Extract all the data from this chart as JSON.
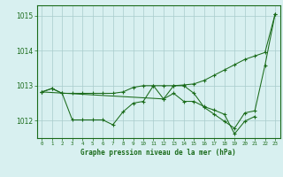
{
  "xlabel": "Graphe pression niveau de la mer (hPa)",
  "hours": [
    0,
    1,
    2,
    3,
    4,
    5,
    6,
    7,
    8,
    9,
    10,
    11,
    12,
    13,
    14,
    15,
    16,
    17,
    18,
    19,
    20,
    21,
    22,
    23
  ],
  "line1": [
    1012.82,
    1012.92,
    1012.78,
    1012.78,
    1012.78,
    1012.78,
    1012.78,
    1012.78,
    1012.82,
    1012.95,
    1013.0,
    1013.0,
    1013.0,
    1013.0,
    1013.02,
    1013.05,
    1013.15,
    1013.3,
    1013.45,
    1013.6,
    1013.75,
    1013.85,
    1013.95,
    1015.05
  ],
  "line2": [
    1012.82,
    1012.92,
    1012.78,
    1012.02,
    1012.02,
    1012.02,
    1012.02,
    1011.88,
    1012.25,
    1012.5,
    1012.55,
    1013.0,
    1012.62,
    1013.0,
    1013.0,
    1012.78,
    1012.38,
    1012.18,
    1011.98,
    1011.78,
    1012.22,
    1012.28,
    1013.58,
    1015.05
  ],
  "line3_x": [
    0,
    12,
    13,
    14,
    15,
    16,
    17,
    18,
    19,
    20,
    21
  ],
  "line3_y": [
    1012.82,
    1012.62,
    1012.78,
    1012.55,
    1012.55,
    1012.4,
    1012.3,
    1012.18,
    1011.62,
    1011.98,
    1012.12
  ],
  "line_color": "#1a6b1a",
  "bg_color": "#d8f0f0",
  "grid_color": "#a8cccc",
  "tick_color": "#1a6b1a",
  "label_color": "#1a6b1a",
  "ylim": [
    1011.5,
    1015.3
  ],
  "yticks": [
    1012,
    1013,
    1014,
    1015
  ],
  "xlim": [
    -0.5,
    23.5
  ]
}
